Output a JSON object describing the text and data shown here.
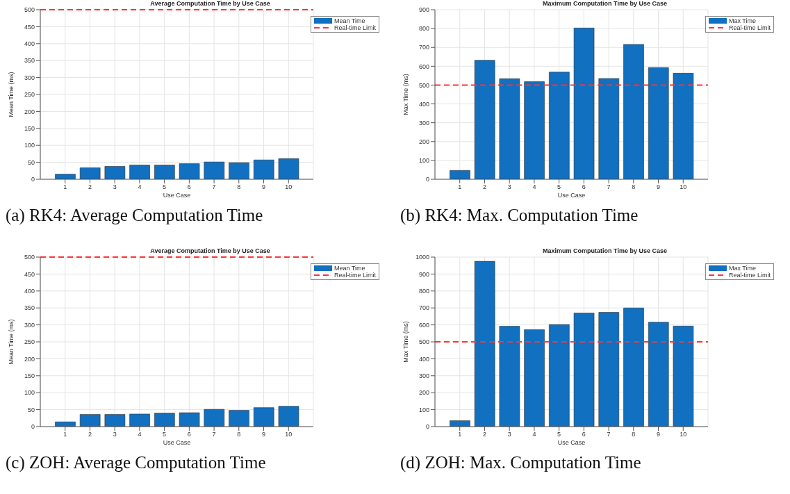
{
  "chart_data": [
    {
      "type": "bar",
      "title": "Average Computation Time by Use Case",
      "xlabel": "Use Case",
      "ylabel": "Mean Time (ms)",
      "annotations": [
        "(a) RK4: Average Computation Time"
      ],
      "categories": [
        "1",
        "2",
        "3",
        "4",
        "5",
        "6",
        "7",
        "8",
        "9",
        "10"
      ],
      "series": [
        {
          "name": "Mean Time",
          "color": "#1170bf",
          "values": [
            15,
            34,
            38,
            42,
            42,
            46,
            51,
            49,
            57,
            61
          ]
        }
      ],
      "ylim": [
        0,
        500
      ],
      "yticks": [
        0,
        50,
        100,
        150,
        200,
        250,
        300,
        350,
        400,
        450,
        500
      ],
      "grid": true,
      "legend": "top right",
      "ref_lines": [
        {
          "axis": "y",
          "value": 500,
          "label": "Real-time Limit",
          "color": "#ff3333",
          "line_style": "dashed"
        }
      ]
    },
    {
      "type": "bar",
      "title": "Maximum Computation Time by Use Case",
      "xlabel": "Use Case",
      "ylabel": "Max Time (ms)",
      "annotations": [
        "(b) RK4: Max. Computation Time"
      ],
      "categories": [
        "1",
        "2",
        "3",
        "4",
        "5",
        "6",
        "7",
        "8",
        "9",
        "10"
      ],
      "series": [
        {
          "name": "Max Time",
          "color": "#1170bf",
          "values": [
            47,
            632,
            534,
            518,
            569,
            803,
            535,
            716,
            593,
            563
          ]
        }
      ],
      "ylim": [
        0,
        900
      ],
      "yticks": [
        0,
        100,
        200,
        300,
        400,
        500,
        600,
        700,
        800,
        900
      ],
      "grid": true,
      "legend": "top right",
      "ref_lines": [
        {
          "axis": "y",
          "value": 500,
          "label": "Real-time Limit",
          "color": "#ff3333",
          "line_style": "dashed"
        }
      ]
    },
    {
      "type": "bar",
      "title": "Average Computation Time by Use Case",
      "xlabel": "Use Case",
      "ylabel": "Mean Time (ms)",
      "annotations": [
        "(c) ZOH: Average Computation Time"
      ],
      "categories": [
        "1",
        "2",
        "3",
        "4",
        "5",
        "6",
        "7",
        "8",
        "9",
        "10"
      ],
      "series": [
        {
          "name": "Mean Time",
          "color": "#1170bf",
          "values": [
            14,
            36,
            36,
            37,
            40,
            41,
            51,
            48,
            56,
            60
          ]
        }
      ],
      "ylim": [
        0,
        500
      ],
      "yticks": [
        0,
        50,
        100,
        150,
        200,
        250,
        300,
        350,
        400,
        450,
        500
      ],
      "grid": true,
      "legend": "top right",
      "ref_lines": [
        {
          "axis": "y",
          "value": 500,
          "label": "Real-time Limit",
          "color": "#ff3333",
          "line_style": "dashed"
        }
      ]
    },
    {
      "type": "bar",
      "title": "Maximum Computation Time by Use Case",
      "xlabel": "Use Case",
      "ylabel": "Max Time (ms)",
      "annotations": [
        "(d) ZOH: Max. Computation Time"
      ],
      "categories": [
        "1",
        "2",
        "3",
        "4",
        "5",
        "6",
        "7",
        "8",
        "9",
        "10"
      ],
      "series": [
        {
          "name": "Max Time",
          "color": "#1170bf",
          "values": [
            35,
            975,
            592,
            572,
            602,
            670,
            674,
            700,
            616,
            593
          ]
        }
      ],
      "ylim": [
        0,
        1000
      ],
      "yticks": [
        0,
        100,
        200,
        300,
        400,
        500,
        600,
        700,
        800,
        900,
        1000
      ],
      "grid": true,
      "legend": "top right",
      "ref_lines": [
        {
          "axis": "y",
          "value": 500,
          "label": "Real-time Limit",
          "color": "#ff3333",
          "line_style": "dashed"
        }
      ]
    }
  ]
}
